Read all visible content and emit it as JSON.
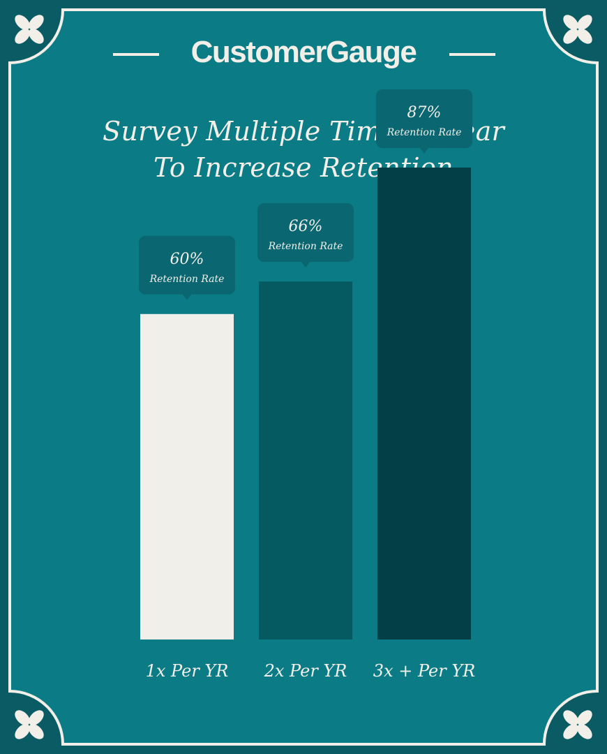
{
  "brand": {
    "name": "CustomerGauge"
  },
  "colors": {
    "background": "#0b7c86",
    "frame_outer": "#0b5b64",
    "frame_line": "#f2efe8",
    "callout": "#0a6670",
    "bar_colors": [
      "#f1efea",
      "#055a61",
      "#033f47"
    ]
  },
  "chart_data": {
    "type": "bar",
    "title": "Survey Multiple Times a Year\nTo Increase Retention",
    "title_lines": [
      "Survey Multiple Times a Year",
      "To Increase Retention"
    ],
    "categories": [
      "1x Per YR",
      "2x Per YR",
      "3x + Per YR"
    ],
    "values": [
      60,
      66,
      87
    ],
    "value_labels": [
      "60%",
      "66%",
      "87%"
    ],
    "annotation": "Retention Rate",
    "unit": "%",
    "ylim": [
      0,
      100
    ],
    "grid": false,
    "legend": "none"
  }
}
